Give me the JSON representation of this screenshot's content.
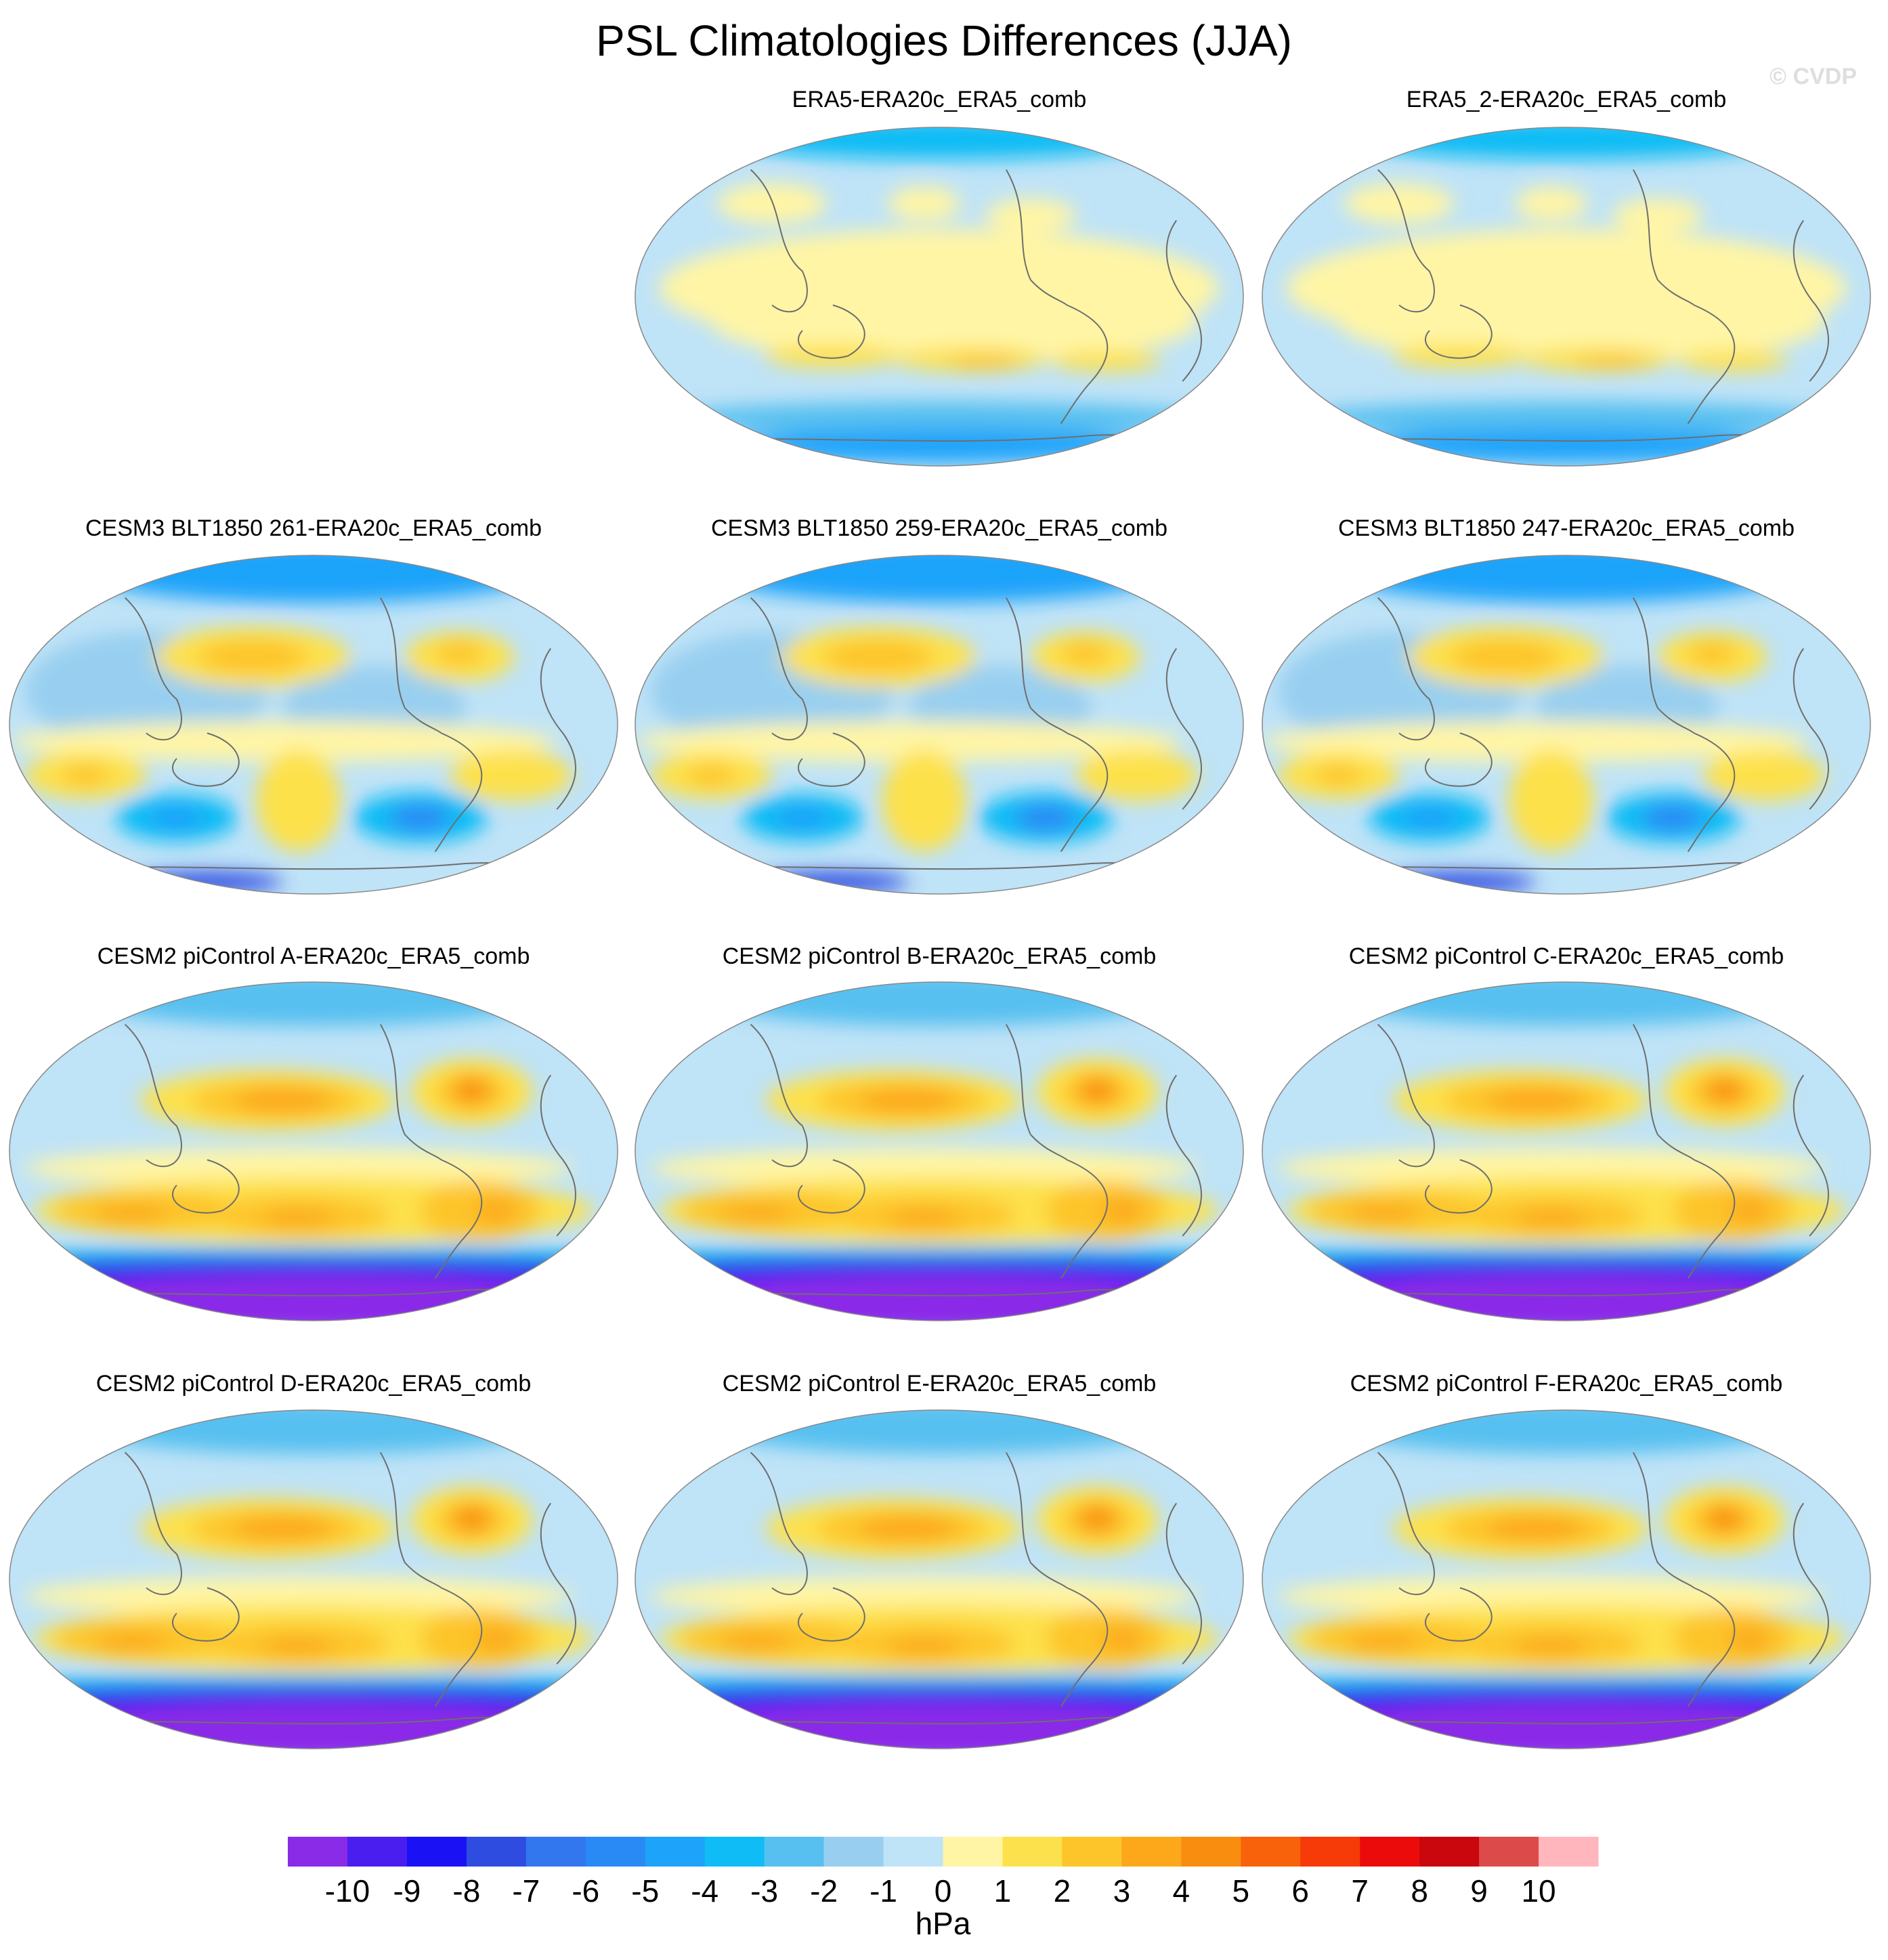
{
  "title": "PSL Climatologies Differences (JJA)",
  "watermark": "© CVDP",
  "panels": [
    {
      "label": "ERA5-ERA20c_ERA5_comb",
      "row": 0,
      "col": 1,
      "pattern": "era5"
    },
    {
      "label": "ERA5_2-ERA20c_ERA5_comb",
      "row": 0,
      "col": 2,
      "pattern": "era5"
    },
    {
      "label": "CESM3 BLT1850 261-ERA20c_ERA5_comb",
      "row": 1,
      "col": 0,
      "pattern": "cesm3"
    },
    {
      "label": "CESM3 BLT1850 259-ERA20c_ERA5_comb",
      "row": 1,
      "col": 1,
      "pattern": "cesm3"
    },
    {
      "label": "CESM3 BLT1850 247-ERA20c_ERA5_comb",
      "row": 1,
      "col": 2,
      "pattern": "cesm3"
    },
    {
      "label": "CESM2 piControl A-ERA20c_ERA5_comb",
      "row": 2,
      "col": 0,
      "pattern": "cesm2"
    },
    {
      "label": "CESM2 piControl B-ERA20c_ERA5_comb",
      "row": 2,
      "col": 1,
      "pattern": "cesm2"
    },
    {
      "label": "CESM2 piControl C-ERA20c_ERA5_comb",
      "row": 2,
      "col": 2,
      "pattern": "cesm2"
    },
    {
      "label": "CESM2 piControl D-ERA20c_ERA5_comb",
      "row": 3,
      "col": 0,
      "pattern": "cesm2"
    },
    {
      "label": "CESM2 piControl E-ERA20c_ERA5_comb",
      "row": 3,
      "col": 1,
      "pattern": "cesm2"
    },
    {
      "label": "CESM2 piControl F-ERA20c_ERA5_comb",
      "row": 3,
      "col": 2,
      "pattern": "cesm2"
    }
  ],
  "chart_data": {
    "type": "heatmap",
    "title": "PSL Climatologies Differences (JJA)",
    "units": "hPa",
    "colorbar": {
      "ticks": [
        "-10",
        "-9",
        "-8",
        "-7",
        "-6",
        "-5",
        "-4",
        "-3",
        "-2",
        "-1",
        "0",
        "1",
        "2",
        "3",
        "4",
        "5",
        "6",
        "7",
        "8",
        "9",
        "10"
      ],
      "colors": [
        "#8a2be8",
        "#4b1ef0",
        "#1a12f5",
        "#2f4ce0",
        "#3377ee",
        "#2a8af5",
        "#1ea3fa",
        "#10bcf5",
        "#57c0f0",
        "#98cff0",
        "#bfe3f7",
        "#fff5a5",
        "#fde14c",
        "#fdc52a",
        "#fca81a",
        "#f98d10",
        "#f8620a",
        "#f63a08",
        "#ec0b0b",
        "#c9070d",
        "#dd4a4a",
        "#ffb6bd"
      ]
    }
  }
}
